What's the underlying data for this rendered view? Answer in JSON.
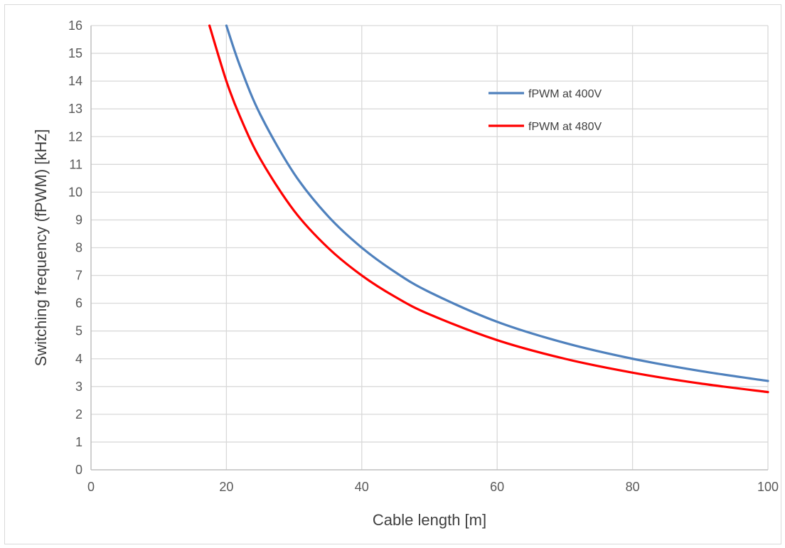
{
  "chart_data": {
    "type": "line",
    "title": "",
    "xlabel": "Cable length [m]",
    "ylabel": "Switching frequency (fPWM) [kHz]",
    "xlim": [
      0,
      100
    ],
    "ylim": [
      0,
      16
    ],
    "x_ticks": [
      "0",
      "20",
      "40",
      "60",
      "80",
      "100"
    ],
    "y_ticks": [
      "0",
      "1",
      "2",
      "3",
      "4",
      "5",
      "6",
      "7",
      "8",
      "9",
      "10",
      "11",
      "12",
      "13",
      "14",
      "15",
      "16"
    ],
    "grid": true,
    "legend_position": "top-right",
    "series": [
      {
        "name": "fPWM at 400V",
        "color": "#4f81bd",
        "x": [
          20,
          22,
          25,
          30,
          35,
          40,
          45,
          50,
          60,
          70,
          80,
          90,
          100
        ],
        "y": [
          16.0,
          14.55,
          12.8,
          10.67,
          9.14,
          8.0,
          7.11,
          6.4,
          5.33,
          4.57,
          4.0,
          3.56,
          3.2
        ]
      },
      {
        "name": "fPWM at 480V",
        "color": "#ff0000",
        "x": [
          17.5,
          20,
          22,
          25,
          30,
          35,
          40,
          45,
          50,
          60,
          70,
          80,
          90,
          100
        ],
        "y": [
          16.0,
          14.0,
          12.73,
          11.2,
          9.33,
          8.0,
          7.0,
          6.22,
          5.6,
          4.67,
          4.0,
          3.5,
          3.11,
          2.8
        ]
      }
    ]
  }
}
